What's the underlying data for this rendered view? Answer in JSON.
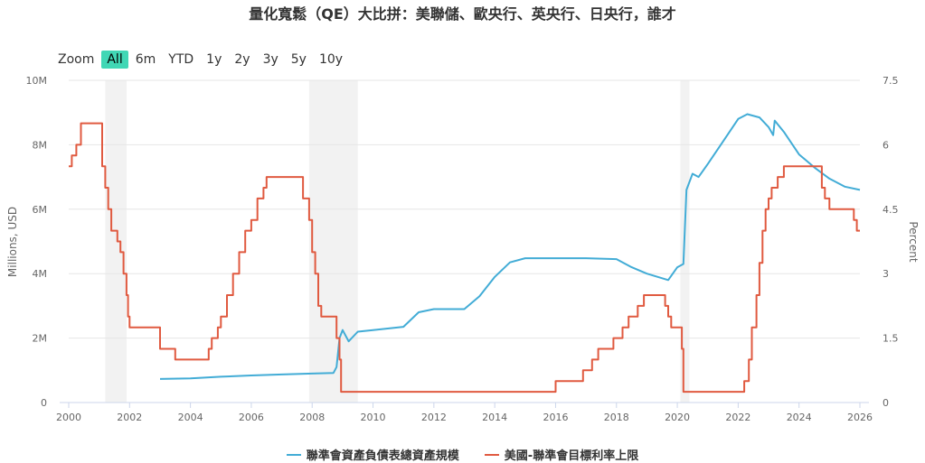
{
  "title": "量化寬鬆（QE）大比拼：美聯儲、歐央行、英央行、日央行，誰才",
  "range_selector": {
    "zoom_label": "Zoom",
    "buttons": [
      "All",
      "6m",
      "YTD",
      "1y",
      "2y",
      "3y",
      "5y",
      "10y"
    ],
    "selected": "All"
  },
  "chart_data": {
    "type": "line",
    "title": "量化寬鬆（QE）大比拼：美聯儲、歐央行、英央行、日央行，誰才",
    "xlim": [
      2000,
      2026
    ],
    "x_ticks": [
      "2000",
      "2002",
      "2004",
      "2006",
      "2008",
      "2010",
      "2012",
      "2014",
      "2016",
      "2018",
      "2020",
      "2022",
      "2024",
      "2026"
    ],
    "y_left": {
      "label": "Millions, USD",
      "ylim": [
        0,
        10
      ],
      "ticks": [
        "0",
        "2M",
        "4M",
        "6M",
        "8M",
        "10M"
      ]
    },
    "y_right": {
      "label": "Percent",
      "ylim": [
        0,
        7.5
      ],
      "ticks": [
        "0",
        "1.5",
        "3",
        "4.5",
        "6",
        "7.5"
      ]
    },
    "recessions": [
      [
        2001.2,
        2001.9
      ],
      [
        2007.9,
        2009.5
      ],
      [
        2020.1,
        2020.4
      ]
    ],
    "grid": true,
    "legend_position": "bottom",
    "series": [
      {
        "name": "聯準會資產負債表總資產規模",
        "color": "#42acd6",
        "axis": "left",
        "points": [
          [
            2003.0,
            0.73
          ],
          [
            2004.0,
            0.75
          ],
          [
            2005.0,
            0.8
          ],
          [
            2006.0,
            0.84
          ],
          [
            2007.0,
            0.87
          ],
          [
            2008.0,
            0.9
          ],
          [
            2008.7,
            0.92
          ],
          [
            2008.8,
            1.1
          ],
          [
            2008.9,
            2.0
          ],
          [
            2009.0,
            2.25
          ],
          [
            2009.2,
            1.9
          ],
          [
            2009.5,
            2.2
          ],
          [
            2010.0,
            2.25
          ],
          [
            2011.0,
            2.35
          ],
          [
            2011.5,
            2.8
          ],
          [
            2012.0,
            2.9
          ],
          [
            2013.0,
            2.9
          ],
          [
            2013.5,
            3.3
          ],
          [
            2014.0,
            3.9
          ],
          [
            2014.5,
            4.35
          ],
          [
            2015.0,
            4.48
          ],
          [
            2016.0,
            4.48
          ],
          [
            2017.0,
            4.48
          ],
          [
            2018.0,
            4.45
          ],
          [
            2018.5,
            4.2
          ],
          [
            2019.0,
            4.0
          ],
          [
            2019.7,
            3.8
          ],
          [
            2020.0,
            4.2
          ],
          [
            2020.2,
            4.3
          ],
          [
            2020.3,
            6.6
          ],
          [
            2020.5,
            7.1
          ],
          [
            2020.7,
            7.0
          ],
          [
            2021.0,
            7.4
          ],
          [
            2021.5,
            8.1
          ],
          [
            2022.0,
            8.8
          ],
          [
            2022.3,
            8.95
          ],
          [
            2022.7,
            8.85
          ],
          [
            2023.0,
            8.55
          ],
          [
            2023.15,
            8.3
          ],
          [
            2023.2,
            8.75
          ],
          [
            2023.5,
            8.4
          ],
          [
            2024.0,
            7.7
          ],
          [
            2024.5,
            7.3
          ],
          [
            2025.0,
            6.95
          ],
          [
            2025.5,
            6.7
          ],
          [
            2026.0,
            6.6
          ]
        ]
      },
      {
        "name": "美國-聯準會目標利率上限",
        "color": "#e05a40",
        "axis": "right",
        "points": [
          [
            2000.0,
            5.5
          ],
          [
            2000.1,
            5.75
          ],
          [
            2000.25,
            6.0
          ],
          [
            2000.4,
            6.5
          ],
          [
            2001.0,
            6.5
          ],
          [
            2001.1,
            5.5
          ],
          [
            2001.2,
            5.0
          ],
          [
            2001.3,
            4.5
          ],
          [
            2001.4,
            4.0
          ],
          [
            2001.6,
            3.75
          ],
          [
            2001.7,
            3.5
          ],
          [
            2001.8,
            3.0
          ],
          [
            2001.9,
            2.5
          ],
          [
            2001.95,
            2.0
          ],
          [
            2002.0,
            1.75
          ],
          [
            2002.9,
            1.75
          ],
          [
            2003.0,
            1.25
          ],
          [
            2003.5,
            1.0
          ],
          [
            2004.5,
            1.0
          ],
          [
            2004.6,
            1.25
          ],
          [
            2004.7,
            1.5
          ],
          [
            2004.9,
            1.75
          ],
          [
            2005.0,
            2.0
          ],
          [
            2005.2,
            2.5
          ],
          [
            2005.4,
            3.0
          ],
          [
            2005.6,
            3.5
          ],
          [
            2005.8,
            4.0
          ],
          [
            2006.0,
            4.25
          ],
          [
            2006.2,
            4.75
          ],
          [
            2006.4,
            5.0
          ],
          [
            2006.5,
            5.25
          ],
          [
            2007.6,
            5.25
          ],
          [
            2007.7,
            4.75
          ],
          [
            2007.9,
            4.25
          ],
          [
            2008.0,
            3.5
          ],
          [
            2008.1,
            3.0
          ],
          [
            2008.2,
            2.25
          ],
          [
            2008.3,
            2.0
          ],
          [
            2008.75,
            2.0
          ],
          [
            2008.8,
            1.5
          ],
          [
            2008.9,
            1.0
          ],
          [
            2008.95,
            0.25
          ],
          [
            2015.9,
            0.25
          ],
          [
            2016.0,
            0.5
          ],
          [
            2016.9,
            0.75
          ],
          [
            2017.2,
            1.0
          ],
          [
            2017.4,
            1.25
          ],
          [
            2017.9,
            1.5
          ],
          [
            2018.2,
            1.75
          ],
          [
            2018.4,
            2.0
          ],
          [
            2018.7,
            2.25
          ],
          [
            2018.9,
            2.5
          ],
          [
            2019.5,
            2.5
          ],
          [
            2019.6,
            2.25
          ],
          [
            2019.7,
            2.0
          ],
          [
            2019.8,
            1.75
          ],
          [
            2020.15,
            1.25
          ],
          [
            2020.2,
            0.25
          ],
          [
            2022.1,
            0.25
          ],
          [
            2022.2,
            0.5
          ],
          [
            2022.35,
            1.0
          ],
          [
            2022.45,
            1.75
          ],
          [
            2022.6,
            2.5
          ],
          [
            2022.7,
            3.25
          ],
          [
            2022.8,
            4.0
          ],
          [
            2022.9,
            4.5
          ],
          [
            2023.0,
            4.75
          ],
          [
            2023.1,
            5.0
          ],
          [
            2023.3,
            5.25
          ],
          [
            2023.5,
            5.5
          ],
          [
            2024.7,
            5.5
          ],
          [
            2024.75,
            5.0
          ],
          [
            2024.85,
            4.75
          ],
          [
            2025.0,
            4.5
          ],
          [
            2025.7,
            4.5
          ],
          [
            2025.8,
            4.25
          ],
          [
            2025.9,
            4.0
          ],
          [
            2026.0,
            4.0
          ]
        ]
      }
    ]
  }
}
